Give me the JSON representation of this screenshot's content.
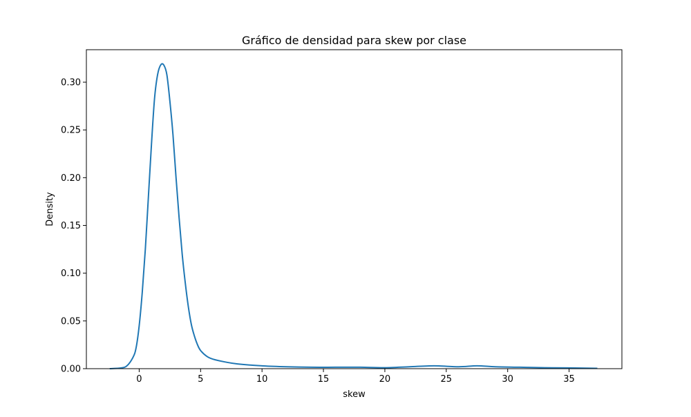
{
  "chart_data": {
    "type": "line",
    "title": "Gráfico de densidad para skew por clase",
    "xlabel": "skew",
    "ylabel": "Density",
    "xlim": [
      -4.3,
      39.3
    ],
    "ylim": [
      0,
      0.334
    ],
    "xticks": [
      0,
      5,
      10,
      15,
      20,
      25,
      30,
      35
    ],
    "xtick_labels": [
      "0",
      "5",
      "10",
      "15",
      "20",
      "25",
      "30",
      "35"
    ],
    "yticks": [
      0.0,
      0.05,
      0.1,
      0.15,
      0.2,
      0.25,
      0.3
    ],
    "ytick_labels": [
      "0.00",
      "0.05",
      "0.10",
      "0.15",
      "0.20",
      "0.25",
      "0.30"
    ],
    "grid": false,
    "series": [
      {
        "color": "#1f77b4",
        "x": [
          -2.4,
          -1.5,
          -1.0,
          -0.5,
          -0.25,
          0.0,
          0.25,
          0.5,
          0.75,
          1.0,
          1.25,
          1.5,
          1.75,
          2.0,
          2.25,
          2.5,
          2.75,
          3.0,
          3.25,
          3.5,
          3.75,
          4.0,
          4.25,
          4.5,
          4.75,
          5.0,
          5.5,
          6.0,
          7.0,
          8.0,
          10.0,
          12.0,
          14.0,
          16.0,
          18.0,
          20.0,
          22.0,
          24.0,
          26.0,
          27.5,
          29.0,
          31.0,
          33.0,
          35.0,
          37.3
        ],
        "y": [
          0.0,
          0.0007,
          0.003,
          0.012,
          0.022,
          0.045,
          0.08,
          0.125,
          0.18,
          0.235,
          0.283,
          0.308,
          0.318,
          0.318,
          0.308,
          0.28,
          0.245,
          0.2,
          0.158,
          0.12,
          0.09,
          0.065,
          0.046,
          0.034,
          0.025,
          0.019,
          0.013,
          0.01,
          0.007,
          0.005,
          0.003,
          0.002,
          0.0015,
          0.0015,
          0.0015,
          0.001,
          0.002,
          0.003,
          0.002,
          0.003,
          0.002,
          0.0015,
          0.001,
          0.0008,
          0.0004
        ]
      }
    ]
  }
}
